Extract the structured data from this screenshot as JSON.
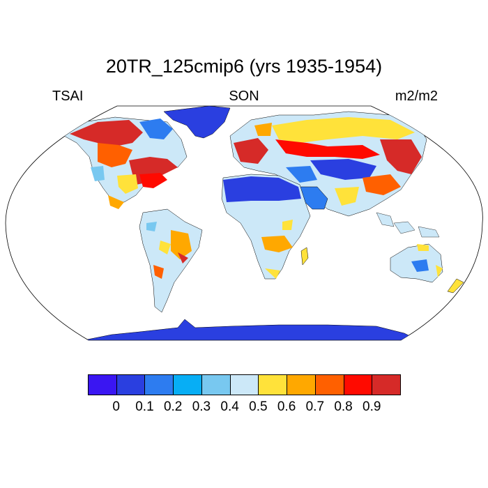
{
  "title": "20TR_125cmip6 (yrs 1935-1954)",
  "left_label": "TSAI",
  "center_label": "SON",
  "right_label": "m2/m2",
  "colorbar": {
    "colors": [
      "#3a16f2",
      "#2a3fe0",
      "#2d7cf0",
      "#07aef5",
      "#78c8f0",
      "#cce8f8",
      "#ffe23a",
      "#ffa800",
      "#ff6000",
      "#ff0a00",
      "#d62a28"
    ],
    "labels": [
      "0",
      "0.1",
      "0.2",
      "0.3",
      "0.4",
      "0.5",
      "0.6",
      "0.7",
      "0.8",
      "0.9"
    ]
  }
}
